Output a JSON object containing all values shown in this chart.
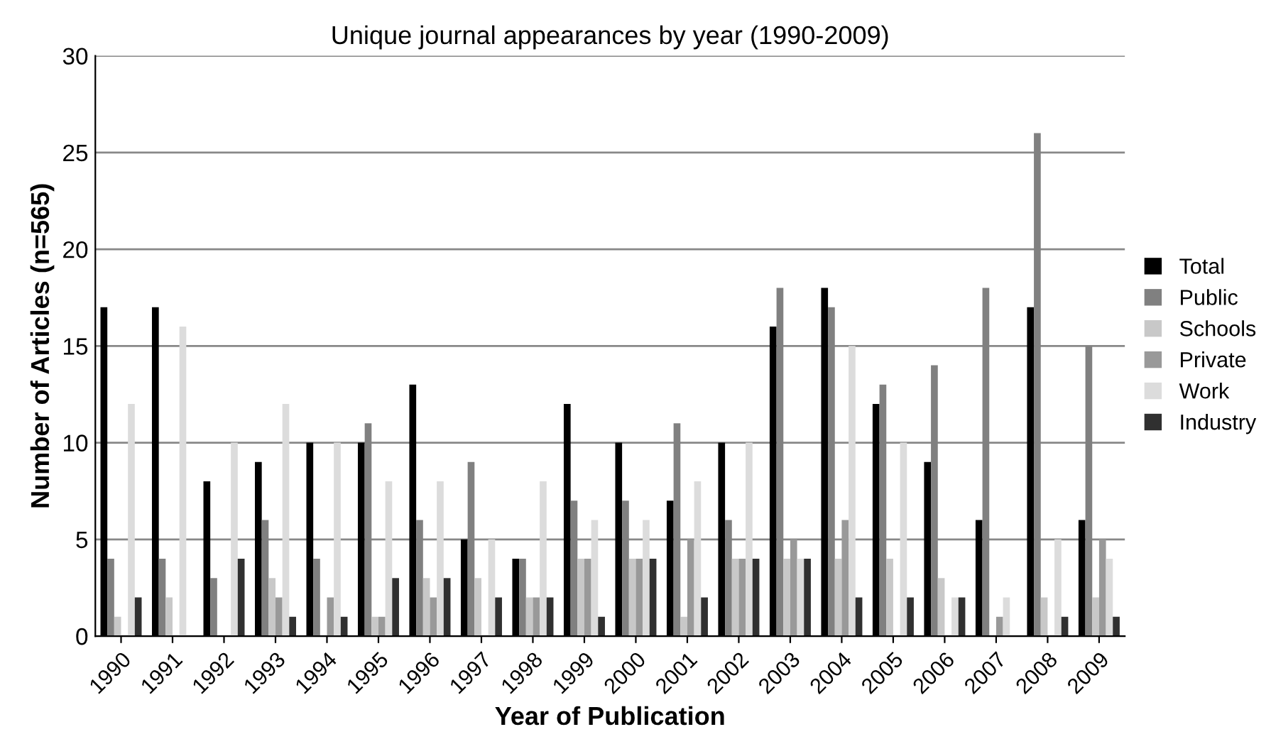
{
  "chart_data": {
    "type": "bar",
    "title": "Unique journal appearances by year (1990-2009)",
    "xlabel": "Year of Publication",
    "ylabel": "Number of Articles (n=565)",
    "categories": [
      "1990",
      "1991",
      "1992",
      "1993",
      "1994",
      "1995",
      "1996",
      "1997",
      "1998",
      "1999",
      "2000",
      "2001",
      "2002",
      "2003",
      "2004",
      "2005",
      "2006",
      "2007",
      "2008",
      "2009"
    ],
    "series": [
      {
        "name": "Total",
        "color": "#000000",
        "values": [
          17,
          17,
          8,
          9,
          10,
          10,
          13,
          5,
          4,
          12,
          10,
          7,
          10,
          16,
          18,
          12,
          9,
          6,
          17,
          6
        ]
      },
      {
        "name": "Public",
        "color": "#808080",
        "values": [
          4,
          4,
          3,
          6,
          4,
          11,
          6,
          9,
          4,
          7,
          7,
          11,
          6,
          18,
          17,
          13,
          14,
          18,
          26,
          15
        ]
      },
      {
        "name": "Schools",
        "color": "#c8c8c8",
        "values": [
          1,
          2,
          0,
          3,
          0,
          1,
          3,
          3,
          2,
          4,
          4,
          1,
          4,
          4,
          4,
          4,
          3,
          0,
          2,
          2
        ]
      },
      {
        "name": "Private",
        "color": "#999999",
        "values": [
          0,
          0,
          0,
          2,
          2,
          1,
          2,
          0,
          2,
          4,
          4,
          5,
          4,
          5,
          6,
          0,
          0,
          1,
          0,
          5
        ]
      },
      {
        "name": "Work",
        "color": "#dcdcdc",
        "values": [
          12,
          16,
          10,
          12,
          10,
          8,
          8,
          5,
          8,
          6,
          6,
          8,
          10,
          4,
          15,
          10,
          2,
          2,
          5,
          4
        ]
      },
      {
        "name": "Industry",
        "color": "#303030",
        "values": [
          2,
          0,
          4,
          1,
          1,
          3,
          3,
          2,
          2,
          1,
          4,
          2,
          4,
          4,
          2,
          2,
          2,
          0,
          1,
          1
        ]
      }
    ],
    "ylim": [
      0,
      30
    ],
    "yticks": [
      0,
      5,
      10,
      15,
      20,
      25,
      30
    ],
    "grid": "y",
    "legend": "right"
  }
}
